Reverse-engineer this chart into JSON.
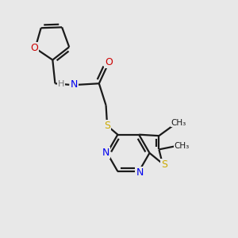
{
  "background_color": "#e8e8e8",
  "bond_color": "#1a1a1a",
  "atom_colors": {
    "C": "#1a1a1a",
    "N": "#0000ee",
    "O": "#cc0000",
    "S": "#ccaa00",
    "H": "#777777"
  },
  "scale": 1.0
}
